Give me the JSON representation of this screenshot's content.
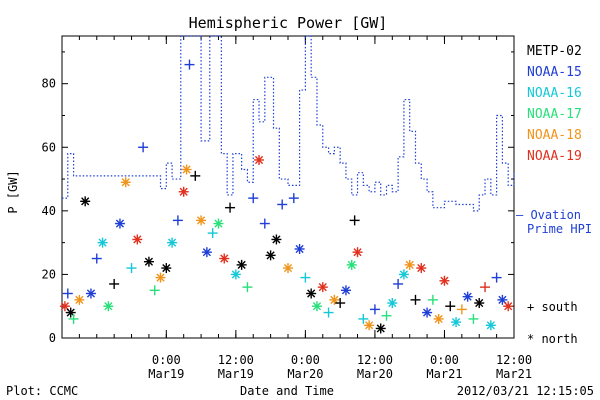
{
  "chart_data": {
    "type": "scatter",
    "title": "Hemispheric Power [GW]",
    "ylabel": "P [GW]",
    "xlabel": "Date and Time",
    "ylim": [
      0,
      95
    ],
    "xlim": [
      "2012-03-18 06:00",
      "2012-03-21 12:00"
    ],
    "y_ticks": [
      0,
      20,
      40,
      60,
      80
    ],
    "x_ticks": [
      {
        "at": "2012-03-19 00:00",
        "time": "0:00",
        "date": "Mar19"
      },
      {
        "at": "2012-03-19 12:00",
        "time": "12:00",
        "date": "Mar19"
      },
      {
        "at": "2012-03-20 00:00",
        "time": "0:00",
        "date": "Mar20"
      },
      {
        "at": "2012-03-20 12:00",
        "time": "12:00",
        "date": "Mar20"
      },
      {
        "at": "2012-03-21 00:00",
        "time": "0:00",
        "date": "Mar21"
      },
      {
        "at": "2012-03-21 12:00",
        "time": "12:00",
        "date": "Mar21"
      }
    ],
    "legend_placement": "right",
    "satellites": [
      {
        "name": "METP-02",
        "color": "#000000"
      },
      {
        "name": "NOAA-15",
        "color": "#1f3fd6"
      },
      {
        "name": "NOAA-16",
        "color": "#15c8d8"
      },
      {
        "name": "NOAA-17",
        "color": "#27e07a"
      },
      {
        "name": "NOAA-18",
        "color": "#f0941b"
      },
      {
        "name": "NOAA-19",
        "color": "#e0301e"
      }
    ],
    "ovation_label": {
      "line1": "— Ovation",
      "line2": "Prime HPI",
      "color": "#1f3fd6"
    },
    "marker_legend": {
      "south": "+ south",
      "north": "* north"
    },
    "ovation": [
      [
        "2012-03-18 06:00",
        44
      ],
      [
        "2012-03-18 07:00",
        58
      ],
      [
        "2012-03-18 08:00",
        51
      ],
      [
        "2012-03-18 14:00",
        51
      ],
      [
        "2012-03-18 20:00",
        51
      ],
      [
        "2012-03-18 23:00",
        47
      ],
      [
        "2012-03-19 00:00",
        55
      ],
      [
        "2012-03-19 01:00",
        50
      ],
      [
        "2012-03-19 02:30",
        95
      ],
      [
        "2012-03-19 05:00",
        95
      ],
      [
        "2012-03-19 06:00",
        62
      ],
      [
        "2012-03-19 07:30",
        95
      ],
      [
        "2012-03-19 08:30",
        95
      ],
      [
        "2012-03-19 09:30",
        58
      ],
      [
        "2012-03-19 10:30",
        45
      ],
      [
        "2012-03-19 11:30",
        58
      ],
      [
        "2012-03-19 13:00",
        53
      ],
      [
        "2012-03-19 14:00",
        49
      ],
      [
        "2012-03-19 15:00",
        75
      ],
      [
        "2012-03-19 16:00",
        68
      ],
      [
        "2012-03-19 17:00",
        82
      ],
      [
        "2012-03-19 18:30",
        66
      ],
      [
        "2012-03-19 19:30",
        50
      ],
      [
        "2012-03-19 21:00",
        48
      ],
      [
        "2012-03-19 23:00",
        78
      ],
      [
        "2012-03-20 00:00",
        95
      ],
      [
        "2012-03-20 01:00",
        82
      ],
      [
        "2012-03-20 02:00",
        67
      ],
      [
        "2012-03-20 03:00",
        60
      ],
      [
        "2012-03-20 04:00",
        58
      ],
      [
        "2012-03-20 05:00",
        60
      ],
      [
        "2012-03-20 06:00",
        55
      ],
      [
        "2012-03-20 07:00",
        50
      ],
      [
        "2012-03-20 08:00",
        45
      ],
      [
        "2012-03-20 09:00",
        52
      ],
      [
        "2012-03-20 10:00",
        48
      ],
      [
        "2012-03-20 11:00",
        46
      ],
      [
        "2012-03-20 12:00",
        49
      ],
      [
        "2012-03-20 13:00",
        45
      ],
      [
        "2012-03-20 14:00",
        48
      ],
      [
        "2012-03-20 15:00",
        46
      ],
      [
        "2012-03-20 16:00",
        57
      ],
      [
        "2012-03-20 17:00",
        75
      ],
      [
        "2012-03-20 18:00",
        65
      ],
      [
        "2012-03-20 19:00",
        55
      ],
      [
        "2012-03-20 20:00",
        50
      ],
      [
        "2012-03-20 21:00",
        46
      ],
      [
        "2012-03-20 22:00",
        41
      ],
      [
        "2012-03-21 00:00",
        43
      ],
      [
        "2012-03-21 02:00",
        42
      ],
      [
        "2012-03-21 04:00",
        42
      ],
      [
        "2012-03-21 05:00",
        40
      ],
      [
        "2012-03-21 06:00",
        45
      ],
      [
        "2012-03-21 07:00",
        50
      ],
      [
        "2012-03-21 08:00",
        45
      ],
      [
        "2012-03-21 09:00",
        70
      ],
      [
        "2012-03-21 10:00",
        55
      ],
      [
        "2012-03-21 11:00",
        48
      ],
      [
        "2012-03-21 12:00",
        52
      ]
    ],
    "points": [
      {
        "t": "2012-03-18 06:30",
        "y": 10,
        "sat": "NOAA-19",
        "hemi": "north"
      },
      {
        "t": "2012-03-18 07:00",
        "y": 14,
        "sat": "NOAA-15",
        "hemi": "south"
      },
      {
        "t": "2012-03-18 07:30",
        "y": 8,
        "sat": "METP-02",
        "hemi": "north"
      },
      {
        "t": "2012-03-18 08:00",
        "y": 6,
        "sat": "NOAA-17",
        "hemi": "south"
      },
      {
        "t": "2012-03-18 09:00",
        "y": 12,
        "sat": "NOAA-18",
        "hemi": "north"
      },
      {
        "t": "2012-03-18 10:00",
        "y": 43,
        "sat": "METP-02",
        "hemi": "north"
      },
      {
        "t": "2012-03-18 11:00",
        "y": 14,
        "sat": "NOAA-15",
        "hemi": "north"
      },
      {
        "t": "2012-03-18 12:00",
        "y": 25,
        "sat": "NOAA-15",
        "hemi": "south"
      },
      {
        "t": "2012-03-18 13:00",
        "y": 30,
        "sat": "NOAA-16",
        "hemi": "north"
      },
      {
        "t": "2012-03-18 14:00",
        "y": 10,
        "sat": "NOAA-17",
        "hemi": "north"
      },
      {
        "t": "2012-03-18 15:00",
        "y": 17,
        "sat": "METP-02",
        "hemi": "south"
      },
      {
        "t": "2012-03-18 16:00",
        "y": 36,
        "sat": "NOAA-15",
        "hemi": "north"
      },
      {
        "t": "2012-03-18 17:00",
        "y": 49,
        "sat": "NOAA-18",
        "hemi": "north"
      },
      {
        "t": "2012-03-18 18:00",
        "y": 22,
        "sat": "NOAA-16",
        "hemi": "south"
      },
      {
        "t": "2012-03-18 19:00",
        "y": 31,
        "sat": "NOAA-19",
        "hemi": "north"
      },
      {
        "t": "2012-03-18 20:00",
        "y": 60,
        "sat": "NOAA-15",
        "hemi": "south"
      },
      {
        "t": "2012-03-18 21:00",
        "y": 24,
        "sat": "METP-02",
        "hemi": "north"
      },
      {
        "t": "2012-03-18 22:00",
        "y": 15,
        "sat": "NOAA-17",
        "hemi": "south"
      },
      {
        "t": "2012-03-18 23:00",
        "y": 19,
        "sat": "NOAA-18",
        "hemi": "north"
      },
      {
        "t": "2012-03-19 00:00",
        "y": 22,
        "sat": "METP-02",
        "hemi": "north"
      },
      {
        "t": "2012-03-19 01:00",
        "y": 30,
        "sat": "NOAA-16",
        "hemi": "north"
      },
      {
        "t": "2012-03-19 02:00",
        "y": 37,
        "sat": "NOAA-15",
        "hemi": "south"
      },
      {
        "t": "2012-03-19 03:00",
        "y": 46,
        "sat": "NOAA-19",
        "hemi": "north"
      },
      {
        "t": "2012-03-19 03:30",
        "y": 53,
        "sat": "NOAA-18",
        "hemi": "north"
      },
      {
        "t": "2012-03-19 04:00",
        "y": 86,
        "sat": "NOAA-15",
        "hemi": "south"
      },
      {
        "t": "2012-03-19 05:00",
        "y": 51,
        "sat": "METP-02",
        "hemi": "south"
      },
      {
        "t": "2012-03-19 06:00",
        "y": 37,
        "sat": "NOAA-18",
        "hemi": "north"
      },
      {
        "t": "2012-03-19 07:00",
        "y": 27,
        "sat": "NOAA-15",
        "hemi": "north"
      },
      {
        "t": "2012-03-19 08:00",
        "y": 33,
        "sat": "NOAA-16",
        "hemi": "south"
      },
      {
        "t": "2012-03-19 09:00",
        "y": 36,
        "sat": "NOAA-17",
        "hemi": "north"
      },
      {
        "t": "2012-03-19 10:00",
        "y": 25,
        "sat": "NOAA-19",
        "hemi": "north"
      },
      {
        "t": "2012-03-19 11:00",
        "y": 41,
        "sat": "METP-02",
        "hemi": "south"
      },
      {
        "t": "2012-03-19 12:00",
        "y": 20,
        "sat": "NOAA-16",
        "hemi": "north"
      },
      {
        "t": "2012-03-19 13:00",
        "y": 23,
        "sat": "METP-02",
        "hemi": "north"
      },
      {
        "t": "2012-03-19 14:00",
        "y": 16,
        "sat": "NOAA-17",
        "hemi": "south"
      },
      {
        "t": "2012-03-19 15:00",
        "y": 44,
        "sat": "NOAA-15",
        "hemi": "south"
      },
      {
        "t": "2012-03-19 16:00",
        "y": 56,
        "sat": "NOAA-19",
        "hemi": "north"
      },
      {
        "t": "2012-03-19 17:00",
        "y": 36,
        "sat": "NOAA-15",
        "hemi": "south"
      },
      {
        "t": "2012-03-19 18:00",
        "y": 26,
        "sat": "METP-02",
        "hemi": "north"
      },
      {
        "t": "2012-03-19 19:00",
        "y": 31,
        "sat": "METP-02",
        "hemi": "north"
      },
      {
        "t": "2012-03-19 20:00",
        "y": 42,
        "sat": "NOAA-15",
        "hemi": "south"
      },
      {
        "t": "2012-03-19 21:00",
        "y": 22,
        "sat": "NOAA-18",
        "hemi": "north"
      },
      {
        "t": "2012-03-19 22:00",
        "y": 44,
        "sat": "NOAA-15",
        "hemi": "south"
      },
      {
        "t": "2012-03-19 23:00",
        "y": 28,
        "sat": "NOAA-15",
        "hemi": "north"
      },
      {
        "t": "2012-03-20 00:00",
        "y": 19,
        "sat": "NOAA-16",
        "hemi": "south"
      },
      {
        "t": "2012-03-20 01:00",
        "y": 14,
        "sat": "METP-02",
        "hemi": "north"
      },
      {
        "t": "2012-03-20 02:00",
        "y": 10,
        "sat": "NOAA-17",
        "hemi": "north"
      },
      {
        "t": "2012-03-20 03:00",
        "y": 16,
        "sat": "NOAA-19",
        "hemi": "north"
      },
      {
        "t": "2012-03-20 04:00",
        "y": 8,
        "sat": "NOAA-16",
        "hemi": "south"
      },
      {
        "t": "2012-03-20 05:00",
        "y": 12,
        "sat": "NOAA-18",
        "hemi": "north"
      },
      {
        "t": "2012-03-20 06:00",
        "y": 11,
        "sat": "METP-02",
        "hemi": "south"
      },
      {
        "t": "2012-03-20 07:00",
        "y": 15,
        "sat": "NOAA-15",
        "hemi": "north"
      },
      {
        "t": "2012-03-20 08:00",
        "y": 23,
        "sat": "NOAA-17",
        "hemi": "north"
      },
      {
        "t": "2012-03-20 08:30",
        "y": 37,
        "sat": "METP-02",
        "hemi": "south"
      },
      {
        "t": "2012-03-20 09:00",
        "y": 27,
        "sat": "NOAA-19",
        "hemi": "north"
      },
      {
        "t": "2012-03-20 10:00",
        "y": 6,
        "sat": "NOAA-16",
        "hemi": "south"
      },
      {
        "t": "2012-03-20 11:00",
        "y": 4,
        "sat": "NOAA-18",
        "hemi": "north"
      },
      {
        "t": "2012-03-20 12:00",
        "y": 9,
        "sat": "NOAA-15",
        "hemi": "south"
      },
      {
        "t": "2012-03-20 13:00",
        "y": 3,
        "sat": "METP-02",
        "hemi": "north"
      },
      {
        "t": "2012-03-20 14:00",
        "y": 7,
        "sat": "NOAA-17",
        "hemi": "south"
      },
      {
        "t": "2012-03-20 15:00",
        "y": 11,
        "sat": "NOAA-16",
        "hemi": "north"
      },
      {
        "t": "2012-03-20 16:00",
        "y": 17,
        "sat": "NOAA-15",
        "hemi": "south"
      },
      {
        "t": "2012-03-20 17:00",
        "y": 20,
        "sat": "NOAA-16",
        "hemi": "north"
      },
      {
        "t": "2012-03-20 18:00",
        "y": 23,
        "sat": "NOAA-18",
        "hemi": "north"
      },
      {
        "t": "2012-03-20 19:00",
        "y": 12,
        "sat": "METP-02",
        "hemi": "south"
      },
      {
        "t": "2012-03-20 20:00",
        "y": 22,
        "sat": "NOAA-19",
        "hemi": "north"
      },
      {
        "t": "2012-03-20 21:00",
        "y": 8,
        "sat": "NOAA-15",
        "hemi": "north"
      },
      {
        "t": "2012-03-20 22:00",
        "y": 12,
        "sat": "NOAA-17",
        "hemi": "south"
      },
      {
        "t": "2012-03-20 23:00",
        "y": 6,
        "sat": "NOAA-18",
        "hemi": "north"
      },
      {
        "t": "2012-03-21 00:00",
        "y": 18,
        "sat": "NOAA-19",
        "hemi": "north"
      },
      {
        "t": "2012-03-21 01:00",
        "y": 10,
        "sat": "METP-02",
        "hemi": "south"
      },
      {
        "t": "2012-03-21 02:00",
        "y": 5,
        "sat": "NOAA-16",
        "hemi": "north"
      },
      {
        "t": "2012-03-21 03:00",
        "y": 9,
        "sat": "NOAA-18",
        "hemi": "south"
      },
      {
        "t": "2012-03-21 04:00",
        "y": 13,
        "sat": "NOAA-15",
        "hemi": "north"
      },
      {
        "t": "2012-03-21 05:00",
        "y": 6,
        "sat": "NOAA-17",
        "hemi": "south"
      },
      {
        "t": "2012-03-21 06:00",
        "y": 11,
        "sat": "METP-02",
        "hemi": "north"
      },
      {
        "t": "2012-03-21 07:00",
        "y": 16,
        "sat": "NOAA-19",
        "hemi": "south"
      },
      {
        "t": "2012-03-21 08:00",
        "y": 4,
        "sat": "NOAA-16",
        "hemi": "north"
      },
      {
        "t": "2012-03-21 09:00",
        "y": 19,
        "sat": "NOAA-15",
        "hemi": "south"
      },
      {
        "t": "2012-03-21 10:00",
        "y": 12,
        "sat": "NOAA-15",
        "hemi": "north"
      },
      {
        "t": "2012-03-21 11:00",
        "y": 10,
        "sat": "NOAA-19",
        "hemi": "north"
      }
    ]
  },
  "footer": {
    "plot_credit": "Plot: CCMC",
    "timestamp": "2012/03/21 12:15:05"
  }
}
